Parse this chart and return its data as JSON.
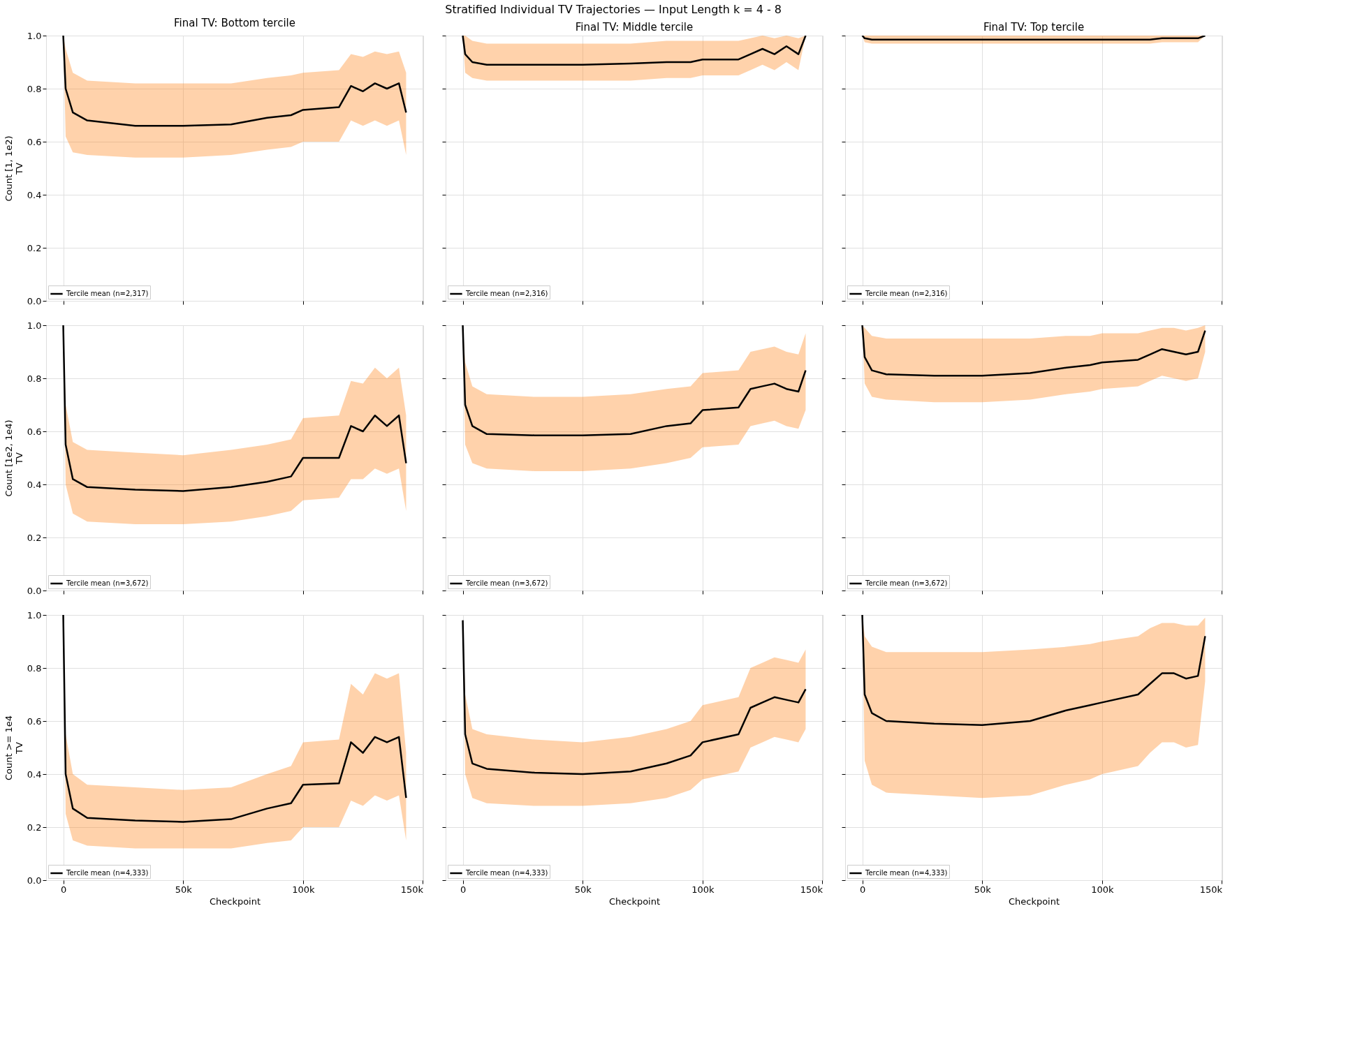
{
  "chart_data": [
    {
      "type": "line",
      "title": "Final TV: Bottom tercile",
      "ylabel": "Count [1, 1e2)\nTV",
      "annotations": [
        "Stratified Individual TV Trajectories — Input Length k = 4 - 8"
      ],
      "x": [
        0,
        1000,
        4000,
        10000,
        30000,
        50000,
        70000,
        85000,
        95000,
        100000,
        115000,
        120000,
        125000,
        130000,
        135000,
        140000,
        143000
      ],
      "xlim": [
        -7150,
        150150
      ],
      "xticks": [
        {
          "value": 0,
          "label": null
        },
        {
          "value": 50000,
          "label": null
        },
        {
          "value": 100000,
          "label": null
        },
        {
          "value": 150000,
          "label": null
        }
      ],
      "ylim": [
        0,
        1
      ],
      "yticks": [
        {
          "value": 0,
          "label": "0.0"
        },
        0.2,
        0.4,
        0.6,
        0.8,
        {
          "value": 1,
          "label": "1.0"
        }
      ],
      "grid": true,
      "legend": "bottom left",
      "tick_labels": "y",
      "series": [
        {
          "name": "Tercile mean (n=2,317)",
          "color": "#000000",
          "values": [
            1.0,
            0.8,
            0.71,
            0.68,
            0.66,
            0.66,
            0.665,
            0.69,
            0.7,
            0.72,
            0.73,
            0.81,
            0.79,
            0.82,
            0.8,
            0.82,
            0.71
          ],
          "lower": [
            1.0,
            0.62,
            0.56,
            0.55,
            0.54,
            0.54,
            0.55,
            0.57,
            0.58,
            0.6,
            0.6,
            0.68,
            0.66,
            0.68,
            0.66,
            0.68,
            0.55
          ],
          "upper": [
            1.0,
            0.95,
            0.86,
            0.83,
            0.82,
            0.82,
            0.82,
            0.84,
            0.85,
            0.86,
            0.87,
            0.93,
            0.92,
            0.94,
            0.93,
            0.94,
            0.86
          ]
        }
      ]
    },
    {
      "type": "line",
      "title": "Final TV: Middle tercile",
      "x": [
        0,
        1000,
        4000,
        10000,
        30000,
        50000,
        70000,
        85000,
        95000,
        100000,
        115000,
        120000,
        125000,
        130000,
        135000,
        140000,
        143000
      ],
      "xlim": [
        -7150,
        150150
      ],
      "xticks": [
        {
          "value": 0,
          "label": null
        },
        {
          "value": 50000,
          "label": null
        },
        {
          "value": 100000,
          "label": null
        },
        {
          "value": 150000,
          "label": null
        }
      ],
      "ylim": [
        0,
        1
      ],
      "yticks": [
        {
          "value": 0,
          "label": null
        },
        {
          "value": 0.2,
          "label": null
        },
        {
          "value": 0.4,
          "label": null
        },
        {
          "value": 0.6,
          "label": null
        },
        {
          "value": 0.8,
          "label": null
        },
        {
          "value": 1,
          "label": null
        }
      ],
      "grid": true,
      "legend": "bottom left",
      "tick_labels": false,
      "series": [
        {
          "name": "Tercile mean (n=2,316)",
          "color": "#000000",
          "values": [
            1.0,
            0.93,
            0.9,
            0.89,
            0.89,
            0.89,
            0.895,
            0.9,
            0.9,
            0.91,
            0.91,
            0.93,
            0.95,
            0.93,
            0.96,
            0.93,
            1.0
          ],
          "lower": [
            1.0,
            0.86,
            0.84,
            0.83,
            0.83,
            0.83,
            0.83,
            0.84,
            0.84,
            0.85,
            0.85,
            0.87,
            0.89,
            0.87,
            0.9,
            0.87,
            1.0
          ],
          "upper": [
            1.0,
            1.0,
            0.98,
            0.97,
            0.97,
            0.97,
            0.97,
            0.98,
            0.98,
            0.98,
            0.98,
            0.99,
            1.0,
            0.99,
            1.0,
            0.99,
            1.0
          ]
        }
      ]
    },
    {
      "type": "line",
      "title": "Final TV: Top tercile",
      "x": [
        0,
        1000,
        4000,
        10000,
        30000,
        50000,
        70000,
        85000,
        95000,
        100000,
        115000,
        120000,
        125000,
        130000,
        135000,
        140000,
        143000
      ],
      "xlim": [
        -7150,
        150150
      ],
      "xticks": [
        {
          "value": 0,
          "label": null
        },
        {
          "value": 50000,
          "label": null
        },
        {
          "value": 100000,
          "label": null
        },
        {
          "value": 150000,
          "label": null
        }
      ],
      "ylim": [
        0,
        1
      ],
      "yticks": [
        {
          "value": 0,
          "label": null
        },
        {
          "value": 0.2,
          "label": null
        },
        {
          "value": 0.4,
          "label": null
        },
        {
          "value": 0.6,
          "label": null
        },
        {
          "value": 0.8,
          "label": null
        },
        {
          "value": 1,
          "label": null
        }
      ],
      "grid": true,
      "legend": "bottom left",
      "tick_labels": false,
      "series": [
        {
          "name": "Tercile mean (n=2,316)",
          "color": "#000000",
          "values": [
            1.0,
            0.99,
            0.985,
            0.985,
            0.985,
            0.985,
            0.985,
            0.985,
            0.985,
            0.985,
            0.985,
            0.985,
            0.99,
            0.99,
            0.99,
            0.99,
            1.0
          ],
          "lower": [
            1.0,
            0.975,
            0.97,
            0.97,
            0.97,
            0.97,
            0.97,
            0.97,
            0.97,
            0.97,
            0.97,
            0.97,
            0.975,
            0.975,
            0.975,
            0.975,
            1.0
          ],
          "upper": [
            1.0,
            1.0,
            1.0,
            1.0,
            1.0,
            1.0,
            1.0,
            1.0,
            1.0,
            1.0,
            1.0,
            1.0,
            1.0,
            1.0,
            1.0,
            1.0,
            1.0
          ]
        }
      ]
    },
    {
      "type": "line",
      "ylabel": "Count [1e2, 1e4)\nTV",
      "x": [
        0,
        1000,
        4000,
        10000,
        30000,
        50000,
        70000,
        85000,
        95000,
        100000,
        115000,
        120000,
        125000,
        130000,
        135000,
        140000,
        143000
      ],
      "xlim": [
        -7150,
        150150
      ],
      "xticks": [
        {
          "value": 0,
          "label": null
        },
        {
          "value": 50000,
          "label": null
        },
        {
          "value": 100000,
          "label": null
        },
        {
          "value": 150000,
          "label": null
        }
      ],
      "ylim": [
        0,
        1
      ],
      "yticks": [
        {
          "value": 0,
          "label": "0.0"
        },
        0.2,
        0.4,
        0.6,
        0.8,
        {
          "value": 1,
          "label": "1.0"
        }
      ],
      "grid": true,
      "legend": "bottom left",
      "tick_labels": "y",
      "series": [
        {
          "name": "Tercile mean (n=3,672)",
          "color": "#000000",
          "values": [
            1.0,
            0.55,
            0.42,
            0.39,
            0.38,
            0.375,
            0.39,
            0.41,
            0.43,
            0.5,
            0.5,
            0.62,
            0.6,
            0.66,
            0.62,
            0.66,
            0.48
          ],
          "lower": [
            1.0,
            0.4,
            0.29,
            0.26,
            0.25,
            0.25,
            0.26,
            0.28,
            0.3,
            0.34,
            0.35,
            0.42,
            0.42,
            0.46,
            0.44,
            0.46,
            0.3
          ],
          "upper": [
            1.0,
            0.7,
            0.56,
            0.53,
            0.52,
            0.51,
            0.53,
            0.55,
            0.57,
            0.65,
            0.66,
            0.79,
            0.78,
            0.84,
            0.8,
            0.84,
            0.66
          ]
        }
      ]
    },
    {
      "type": "line",
      "x": [
        0,
        1000,
        4000,
        10000,
        30000,
        50000,
        70000,
        85000,
        95000,
        100000,
        115000,
        120000,
        125000,
        130000,
        135000,
        140000,
        143000
      ],
      "xlim": [
        -7150,
        150150
      ],
      "xticks": [
        {
          "value": 0,
          "label": null
        },
        {
          "value": 50000,
          "label": null
        },
        {
          "value": 100000,
          "label": null
        },
        {
          "value": 150000,
          "label": null
        }
      ],
      "ylim": [
        0,
        1
      ],
      "yticks": [
        {
          "value": 0,
          "label": null
        },
        {
          "value": 0.2,
          "label": null
        },
        {
          "value": 0.4,
          "label": null
        },
        {
          "value": 0.6,
          "label": null
        },
        {
          "value": 0.8,
          "label": null
        },
        {
          "value": 1,
          "label": null
        }
      ],
      "grid": true,
      "legend": "bottom left",
      "tick_labels": false,
      "series": [
        {
          "name": "Tercile mean (n=3,672)",
          "color": "#000000",
          "values": [
            1.0,
            0.7,
            0.62,
            0.59,
            0.585,
            0.585,
            0.59,
            0.62,
            0.63,
            0.68,
            0.69,
            0.76,
            0.77,
            0.78,
            0.76,
            0.75,
            0.83
          ],
          "lower": [
            1.0,
            0.55,
            0.48,
            0.46,
            0.45,
            0.45,
            0.46,
            0.48,
            0.5,
            0.54,
            0.55,
            0.62,
            0.63,
            0.64,
            0.62,
            0.61,
            0.68
          ],
          "upper": [
            1.0,
            0.86,
            0.77,
            0.74,
            0.73,
            0.73,
            0.74,
            0.76,
            0.77,
            0.82,
            0.83,
            0.9,
            0.91,
            0.92,
            0.9,
            0.89,
            0.97
          ]
        }
      ]
    },
    {
      "type": "line",
      "x": [
        0,
        1000,
        4000,
        10000,
        30000,
        50000,
        70000,
        85000,
        95000,
        100000,
        115000,
        120000,
        125000,
        130000,
        135000,
        140000,
        143000
      ],
      "xlim": [
        -7150,
        150150
      ],
      "xticks": [
        {
          "value": 0,
          "label": null
        },
        {
          "value": 50000,
          "label": null
        },
        {
          "value": 100000,
          "label": null
        },
        {
          "value": 150000,
          "label": null
        }
      ],
      "ylim": [
        0,
        1
      ],
      "yticks": [
        {
          "value": 0,
          "label": null
        },
        {
          "value": 0.2,
          "label": null
        },
        {
          "value": 0.4,
          "label": null
        },
        {
          "value": 0.6,
          "label": null
        },
        {
          "value": 0.8,
          "label": null
        },
        {
          "value": 1,
          "label": null
        }
      ],
      "grid": true,
      "legend": "bottom left",
      "tick_labels": false,
      "series": [
        {
          "name": "Tercile mean (n=3,672)",
          "color": "#000000",
          "values": [
            1.0,
            0.88,
            0.83,
            0.815,
            0.81,
            0.81,
            0.82,
            0.84,
            0.85,
            0.86,
            0.87,
            0.89,
            0.91,
            0.9,
            0.89,
            0.9,
            0.98
          ],
          "lower": [
            1.0,
            0.78,
            0.73,
            0.72,
            0.71,
            0.71,
            0.72,
            0.74,
            0.75,
            0.76,
            0.77,
            0.79,
            0.81,
            0.8,
            0.79,
            0.8,
            0.9
          ],
          "upper": [
            1.0,
            0.99,
            0.96,
            0.95,
            0.95,
            0.95,
            0.95,
            0.96,
            0.96,
            0.97,
            0.97,
            0.98,
            0.99,
            0.99,
            0.98,
            0.99,
            1.0
          ]
        }
      ]
    },
    {
      "type": "line",
      "ylabel": "Count >= 1e4\nTV",
      "xlabel": "Checkpoint",
      "x": [
        0,
        1000,
        4000,
        10000,
        30000,
        50000,
        70000,
        85000,
        95000,
        100000,
        115000,
        120000,
        125000,
        130000,
        135000,
        140000,
        143000
      ],
      "xlim": [
        -7150,
        150150
      ],
      "xticks": [
        {
          "value": 0,
          "label": "0"
        },
        {
          "value": 50000,
          "label": "50k"
        },
        {
          "value": 100000,
          "label": "100k"
        },
        {
          "value": 150000,
          "label": "150k"
        }
      ],
      "ylim": [
        0,
        1
      ],
      "yticks": [
        {
          "value": 0,
          "label": "0.0"
        },
        0.2,
        0.4,
        0.6,
        0.8,
        {
          "value": 1,
          "label": "1.0"
        }
      ],
      "grid": true,
      "legend": "bottom left",
      "series": [
        {
          "name": "Tercile mean (n=4,333)",
          "color": "#000000",
          "values": [
            1.0,
            0.4,
            0.27,
            0.235,
            0.225,
            0.22,
            0.23,
            0.27,
            0.29,
            0.36,
            0.365,
            0.52,
            0.48,
            0.54,
            0.52,
            0.54,
            0.31
          ],
          "lower": [
            1.0,
            0.25,
            0.15,
            0.13,
            0.12,
            0.12,
            0.12,
            0.14,
            0.15,
            0.2,
            0.2,
            0.3,
            0.28,
            0.32,
            0.3,
            0.32,
            0.15
          ],
          "upper": [
            1.0,
            0.55,
            0.4,
            0.36,
            0.35,
            0.34,
            0.35,
            0.4,
            0.43,
            0.52,
            0.53,
            0.74,
            0.7,
            0.78,
            0.76,
            0.78,
            0.48
          ]
        }
      ]
    },
    {
      "type": "line",
      "xlabel": "Checkpoint",
      "x": [
        0,
        1000,
        4000,
        10000,
        30000,
        50000,
        70000,
        85000,
        95000,
        100000,
        115000,
        120000,
        125000,
        130000,
        135000,
        140000,
        143000
      ],
      "xlim": [
        -7150,
        150150
      ],
      "xticks": [
        {
          "value": 0,
          "label": "0"
        },
        {
          "value": 50000,
          "label": "50k"
        },
        {
          "value": 100000,
          "label": "100k"
        },
        {
          "value": 150000,
          "label": "150k"
        }
      ],
      "ylim": [
        0,
        1
      ],
      "yticks": [
        {
          "value": 0,
          "label": null
        },
        {
          "value": 0.2,
          "label": null
        },
        {
          "value": 0.4,
          "label": null
        },
        {
          "value": 0.6,
          "label": null
        },
        {
          "value": 0.8,
          "label": null
        },
        {
          "value": 1,
          "label": null
        }
      ],
      "grid": true,
      "legend": "bottom left",
      "tick_labels": "x",
      "series": [
        {
          "name": "Tercile mean (n=4,333)",
          "color": "#000000",
          "values": [
            0.98,
            0.55,
            0.44,
            0.42,
            0.405,
            0.4,
            0.41,
            0.44,
            0.47,
            0.52,
            0.55,
            0.65,
            0.67,
            0.69,
            0.68,
            0.67,
            0.72
          ],
          "lower": [
            0.98,
            0.4,
            0.31,
            0.29,
            0.28,
            0.28,
            0.29,
            0.31,
            0.34,
            0.38,
            0.41,
            0.5,
            0.52,
            0.54,
            0.53,
            0.52,
            0.57
          ],
          "upper": [
            0.98,
            0.7,
            0.57,
            0.55,
            0.53,
            0.52,
            0.54,
            0.57,
            0.6,
            0.66,
            0.69,
            0.8,
            0.82,
            0.84,
            0.83,
            0.82,
            0.87
          ]
        }
      ]
    },
    {
      "type": "line",
      "xlabel": "Checkpoint",
      "x": [
        0,
        1000,
        4000,
        10000,
        30000,
        50000,
        70000,
        85000,
        95000,
        100000,
        115000,
        120000,
        125000,
        130000,
        135000,
        140000,
        143000
      ],
      "xlim": [
        -7150,
        150150
      ],
      "xticks": [
        {
          "value": 0,
          "label": "0"
        },
        {
          "value": 50000,
          "label": "50k"
        },
        {
          "value": 100000,
          "label": "100k"
        },
        {
          "value": 150000,
          "label": "150k"
        }
      ],
      "ylim": [
        0,
        1
      ],
      "yticks": [
        {
          "value": 0,
          "label": null
        },
        {
          "value": 0.2,
          "label": null
        },
        {
          "value": 0.4,
          "label": null
        },
        {
          "value": 0.6,
          "label": null
        },
        {
          "value": 0.8,
          "label": null
        },
        {
          "value": 1,
          "label": null
        }
      ],
      "grid": true,
      "legend": "bottom left",
      "tick_labels": "x",
      "series": [
        {
          "name": "Tercile mean (n=4,333)",
          "color": "#000000",
          "values": [
            1.0,
            0.7,
            0.63,
            0.6,
            0.59,
            0.585,
            0.6,
            0.64,
            0.66,
            0.67,
            0.7,
            0.74,
            0.78,
            0.78,
            0.76,
            0.77,
            0.92
          ],
          "lower": [
            1.0,
            0.45,
            0.36,
            0.33,
            0.32,
            0.31,
            0.32,
            0.36,
            0.38,
            0.4,
            0.43,
            0.48,
            0.52,
            0.52,
            0.5,
            0.51,
            0.75
          ],
          "upper": [
            1.0,
            0.92,
            0.88,
            0.86,
            0.86,
            0.86,
            0.87,
            0.88,
            0.89,
            0.9,
            0.92,
            0.95,
            0.97,
            0.97,
            0.96,
            0.96,
            0.99
          ]
        }
      ]
    }
  ]
}
